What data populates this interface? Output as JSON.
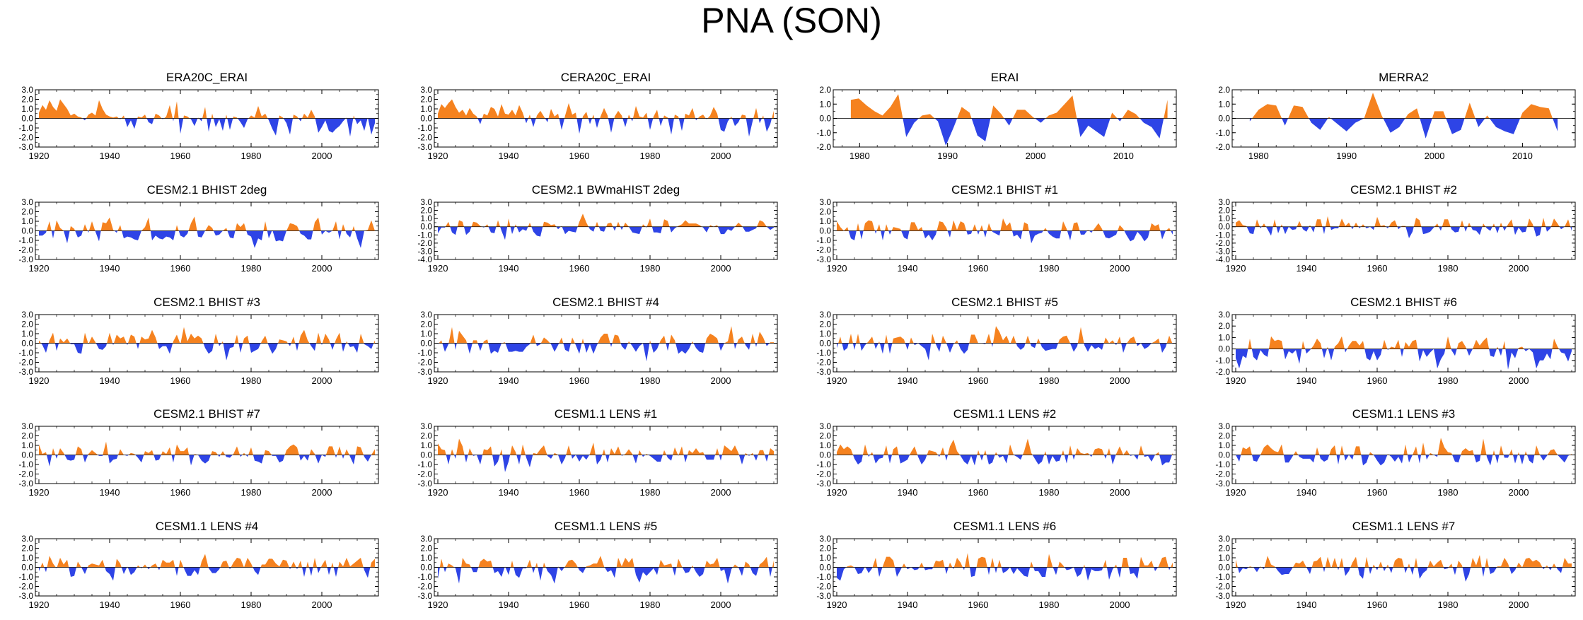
{
  "figure": {
    "title": "PNA (SON)"
  },
  "colors": {
    "positive": "#f5821f",
    "negative": "#2e44e6",
    "axis": "#000000"
  },
  "chart_data": [
    {
      "type": "area",
      "title": "ERA20C_ERAI",
      "x_start": 1920,
      "x_end": 2015,
      "xlim": [
        1919,
        2016
      ],
      "ylim": [
        -3,
        3
      ],
      "yticks": [
        "3.0",
        "2.0",
        "1.0",
        "0.0",
        "-1.0",
        "-2.0",
        "-3.0"
      ],
      "xticks": [
        "1920",
        "1940",
        "1960",
        "1980",
        "2000"
      ],
      "values": [
        0.6,
        1.4,
        0.9,
        1.9,
        1.2,
        0.8,
        2.0,
        1.5,
        1.0,
        0.3,
        0.5,
        0.2,
        0.1,
        -0.2,
        0.4,
        0.6,
        0.3,
        1.9,
        1.0,
        0.4,
        0.2,
        0.1,
        0.2,
        -0.1,
        0.3,
        -0.9,
        -0.2,
        -1.1,
        0.2,
        0.1,
        0.4,
        -0.4,
        -0.6,
        0.5,
        0.3,
        -0.1,
        0.2,
        1.4,
        -0.3,
        1.8,
        -1.6,
        0.3,
        0.2,
        -0.1,
        -0.8,
        0.1,
        -0.3,
        1.2,
        -1.4,
        0.5,
        -0.9,
        -0.1,
        -1.3,
        0.4,
        -1.2,
        0.2,
        0.1,
        -0.4,
        -1.0,
        -0.1,
        0.3,
        0.1,
        1.3,
        0.2,
        0.5,
        -0.2,
        -1.1,
        -1.8,
        0.3,
        0.1,
        -0.5,
        -1.7,
        0.4,
        0.2,
        -0.3,
        0.5,
        0.1,
        0.9,
        0.2,
        -1.5,
        -0.9,
        -0.2,
        -1.3,
        -1.5,
        -1.1,
        -0.8,
        -0.3,
        0.1,
        -1.9,
        0.3,
        -0.6,
        -0.2,
        -1.3,
        0.1,
        -1.7,
        -0.5
      ]
    },
    {
      "type": "area",
      "title": "CERA20C_ERAI",
      "x_start": 1920,
      "x_end": 2015,
      "xlim": [
        1919,
        2016
      ],
      "ylim": [
        -3,
        3
      ],
      "yticks": [
        "3.0",
        "2.0",
        "1.0",
        "0.0",
        "-1.0",
        "-2.0",
        "-3.0"
      ],
      "xticks": [
        "1920",
        "1940",
        "1960",
        "1980",
        "2000"
      ],
      "values": [
        0.5,
        1.5,
        1.1,
        1.6,
        2.0,
        1.2,
        0.6,
        0.9,
        0.3,
        1.1,
        0.5,
        0.2,
        -0.6,
        0.5,
        0.3,
        1.2,
        1.0,
        0.2,
        1.5,
        0.5,
        0.4,
        0.9,
        0.3,
        1.4,
        0.6,
        -0.5,
        0.4,
        -0.9,
        0.3,
        0.8,
        0.2,
        -0.4,
        1.0,
        0.2,
        0.5,
        -1.2,
        0.3,
        1.6,
        0.4,
        0.6,
        -1.6,
        0.2,
        0.7,
        -0.6,
        0.4,
        -1.0,
        0.2,
        1.1,
        0.3,
        -1.5,
        0.2,
        0.8,
        0.3,
        -0.9,
        0.4,
        -0.3,
        1.3,
        0.2,
        0.1,
        0.6,
        -1.2,
        0.2,
        0.9,
        -0.8,
        0.3,
        0.1,
        -1.7,
        0.4,
        0.2,
        -1.3,
        0.5,
        0.3,
        1.1,
        -0.2,
        0.2,
        0.4,
        -0.1,
        0.3,
        1.2,
        0.5,
        -1.2,
        -1.4,
        -0.3,
        0.2,
        -0.8,
        -0.4,
        0.4,
        0.3,
        -1.9,
        -0.3,
        1.1,
        -0.5,
        0.3,
        -1.4,
        -0.6,
        0.8
      ]
    },
    {
      "type": "area",
      "title": "ERAI",
      "x_start": 1979,
      "x_end": 2014,
      "xlim": [
        1977,
        2016
      ],
      "ylim": [
        -2,
        2
      ],
      "yticks": [
        "2.0",
        "1.0",
        "0.0",
        "-1.0",
        "-2.0"
      ],
      "xticks": [
        "1980",
        "1990",
        "2000",
        "2010"
      ],
      "values": [
        1.3,
        1.4,
        0.9,
        0.5,
        0.2,
        0.8,
        1.7,
        -1.3,
        -0.3,
        0.2,
        0.3,
        -0.2,
        -1.9,
        -0.6,
        0.8,
        0.4,
        -1.2,
        -1.6,
        0.9,
        0.3,
        -0.5,
        0.6,
        0.6,
        0.1,
        -0.3,
        0.2,
        0.4,
        1.0,
        1.6,
        -1.3,
        -0.5,
        -0.9,
        -1.3,
        0.4,
        -0.2,
        0.6,
        0.3,
        -0.3,
        -0.6,
        -1.4,
        1.3
      ],
      "x_step": 0.9
    }
  ],
  "panels": [
    {
      "title": "ERA20C_ERAI"
    },
    {
      "title": "CERA20C_ERAI"
    },
    {
      "title": "ERAI"
    },
    {
      "title": "MERRA2"
    },
    {
      "title": "CESM2.1 BHIST 2deg"
    },
    {
      "title": "CESM2.1 BWmaHIST 2deg"
    },
    {
      "title": "CESM2.1 BHIST #1"
    },
    {
      "title": "CESM2.1 BHIST #2"
    },
    {
      "title": "CESM2.1 BHIST #3"
    },
    {
      "title": "CESM2.1 BHIST #4"
    },
    {
      "title": "CESM2.1 BHIST #5"
    },
    {
      "title": "CESM2.1 BHIST #6"
    },
    {
      "title": "CESM2.1 BHIST #7"
    },
    {
      "title": "CESM1.1 LENS #1"
    },
    {
      "title": "CESM1.1 LENS #2"
    },
    {
      "title": "CESM1.1 LENS #3"
    },
    {
      "title": "CESM1.1 LENS #4"
    },
    {
      "title": "CESM1.1 LENS #5"
    },
    {
      "title": "CESM1.1 LENS #6"
    },
    {
      "title": "CESM1.1 LENS #7"
    }
  ],
  "axes": [
    {
      "xlim": [
        1919,
        2016
      ],
      "x_start": 1920,
      "ylim": [
        -3,
        3
      ],
      "yticks": [
        "3.0",
        "2.0",
        "1.0",
        "0.0",
        "-1.0",
        "-2.0",
        "-3.0"
      ],
      "xticks": [
        "1920",
        "1940",
        "1960",
        "1980",
        "2000"
      ],
      "seed": 11
    },
    {
      "xlim": [
        1919,
        2016
      ],
      "x_start": 1920,
      "ylim": [
        -3,
        3
      ],
      "yticks": [
        "3.0",
        "2.0",
        "1.0",
        "0.0",
        "-1.0",
        "-2.0",
        "-3.0"
      ],
      "xticks": [
        "1920",
        "1940",
        "1960",
        "1980",
        "2000"
      ],
      "seed": 12
    },
    {
      "xlim": [
        1977,
        2016
      ],
      "x_start": 1979,
      "ylim": [
        -2,
        2
      ],
      "yticks": [
        "2.0",
        "1.0",
        "0.0",
        "-1.0",
        "-2.0"
      ],
      "xticks": [
        "1980",
        "1990",
        "2000",
        "2010"
      ],
      "seed": 13
    },
    {
      "xlim": [
        1977,
        2016
      ],
      "x_start": 1979,
      "ylim": [
        -2,
        2
      ],
      "yticks": [
        "2.0",
        "1.0",
        "0.0",
        "-1.0",
        "-2.0"
      ],
      "xticks": [
        "1980",
        "1990",
        "2000",
        "2010"
      ],
      "seed": 14
    },
    {
      "xlim": [
        1919,
        2016
      ],
      "x_start": 1920,
      "ylim": [
        -3,
        3
      ],
      "yticks": [
        "3.0",
        "2.0",
        "1.0",
        "0.0",
        "-1.0",
        "-2.0",
        "-3.0"
      ],
      "xticks": [
        "1920",
        "1940",
        "1960",
        "1980",
        "2000"
      ],
      "seed": 21
    },
    {
      "xlim": [
        1919,
        2016
      ],
      "x_start": 1920,
      "ylim": [
        -4,
        3
      ],
      "yticks": [
        "3.0",
        "2.0",
        "1.0",
        "0.0",
        "-1.0",
        "-2.0",
        "-3.0",
        "-4.0"
      ],
      "xticks": [
        "1920",
        "1940",
        "1960",
        "1980",
        "2000"
      ],
      "seed": 22
    },
    {
      "xlim": [
        1919,
        2016
      ],
      "x_start": 1920,
      "ylim": [
        -3,
        3
      ],
      "yticks": [
        "3.0",
        "2.0",
        "1.0",
        "0.0",
        "-1.0",
        "-2.0",
        "-3.0"
      ],
      "xticks": [
        "1920",
        "1940",
        "1960",
        "1980",
        "2000"
      ],
      "seed": 23
    },
    {
      "xlim": [
        1919,
        2016
      ],
      "x_start": 1920,
      "ylim": [
        -4,
        3
      ],
      "yticks": [
        "3.0",
        "2.0",
        "1.0",
        "0.0",
        "-1.0",
        "-2.0",
        "-3.0",
        "-4.0"
      ],
      "xticks": [
        "1920",
        "1940",
        "1960",
        "1980",
        "2000"
      ],
      "seed": 24
    },
    {
      "xlim": [
        1919,
        2016
      ],
      "x_start": 1920,
      "ylim": [
        -3,
        3
      ],
      "yticks": [
        "3.0",
        "2.0",
        "1.0",
        "0.0",
        "-1.0",
        "-2.0",
        "-3.0"
      ],
      "xticks": [
        "1920",
        "1940",
        "1960",
        "1980",
        "2000"
      ],
      "seed": 31
    },
    {
      "xlim": [
        1919,
        2016
      ],
      "x_start": 1920,
      "ylim": [
        -3,
        3
      ],
      "yticks": [
        "3.0",
        "2.0",
        "1.0",
        "0.0",
        "-1.0",
        "-2.0",
        "-3.0"
      ],
      "xticks": [
        "1920",
        "1940",
        "1960",
        "1980",
        "2000"
      ],
      "seed": 32
    },
    {
      "xlim": [
        1919,
        2016
      ],
      "x_start": 1920,
      "ylim": [
        -3,
        3
      ],
      "yticks": [
        "3.0",
        "2.0",
        "1.0",
        "0.0",
        "-1.0",
        "-2.0",
        "-3.0"
      ],
      "xticks": [
        "1920",
        "1940",
        "1960",
        "1980",
        "2000"
      ],
      "seed": 33
    },
    {
      "xlim": [
        1919,
        2016
      ],
      "x_start": 1920,
      "ylim": [
        -2,
        3
      ],
      "yticks": [
        "3.0",
        "2.0",
        "1.0",
        "0.0",
        "-1.0",
        "-2.0"
      ],
      "xticks": [
        "1920",
        "1940",
        "1960",
        "1980",
        "2000"
      ],
      "seed": 34
    },
    {
      "xlim": [
        1919,
        2016
      ],
      "x_start": 1920,
      "ylim": [
        -3,
        3
      ],
      "yticks": [
        "3.0",
        "2.0",
        "1.0",
        "0.0",
        "-1.0",
        "-2.0",
        "-3.0"
      ],
      "xticks": [
        "1920",
        "1940",
        "1960",
        "1980",
        "2000"
      ],
      "seed": 41
    },
    {
      "xlim": [
        1919,
        2016
      ],
      "x_start": 1920,
      "ylim": [
        -3,
        3
      ],
      "yticks": [
        "3.0",
        "2.0",
        "1.0",
        "0.0",
        "-1.0",
        "-2.0",
        "-3.0"
      ],
      "xticks": [
        "1920",
        "1940",
        "1960",
        "1980",
        "2000"
      ],
      "seed": 42
    },
    {
      "xlim": [
        1919,
        2016
      ],
      "x_start": 1920,
      "ylim": [
        -3,
        3
      ],
      "yticks": [
        "3.0",
        "2.0",
        "1.0",
        "0.0",
        "-1.0",
        "-2.0",
        "-3.0"
      ],
      "xticks": [
        "1920",
        "1940",
        "1960",
        "1980",
        "2000"
      ],
      "seed": 43
    },
    {
      "xlim": [
        1919,
        2016
      ],
      "x_start": 1920,
      "ylim": [
        -3,
        3
      ],
      "yticks": [
        "3.0",
        "2.0",
        "1.0",
        "0.0",
        "-1.0",
        "-2.0",
        "-3.0"
      ],
      "xticks": [
        "1920",
        "1940",
        "1960",
        "1980",
        "2000"
      ],
      "seed": 44
    },
    {
      "xlim": [
        1919,
        2016
      ],
      "x_start": 1920,
      "ylim": [
        -3,
        3
      ],
      "yticks": [
        "3.0",
        "2.0",
        "1.0",
        "0.0",
        "-1.0",
        "-2.0",
        "-3.0"
      ],
      "xticks": [
        "1920",
        "1940",
        "1960",
        "1980",
        "2000"
      ],
      "seed": 51
    },
    {
      "xlim": [
        1919,
        2016
      ],
      "x_start": 1920,
      "ylim": [
        -3,
        3
      ],
      "yticks": [
        "3.0",
        "2.0",
        "1.0",
        "0.0",
        "-1.0",
        "-2.0",
        "-3.0"
      ],
      "xticks": [
        "1920",
        "1940",
        "1960",
        "1980",
        "2000"
      ],
      "seed": 52
    },
    {
      "xlim": [
        1919,
        2016
      ],
      "x_start": 1920,
      "ylim": [
        -3,
        3
      ],
      "yticks": [
        "3.0",
        "2.0",
        "1.0",
        "0.0",
        "-1.0",
        "-2.0",
        "-3.0"
      ],
      "xticks": [
        "1920",
        "1940",
        "1960",
        "1980",
        "2000"
      ],
      "seed": 53
    },
    {
      "xlim": [
        1919,
        2016
      ],
      "x_start": 1920,
      "ylim": [
        -3,
        3
      ],
      "yticks": [
        "3.0",
        "2.0",
        "1.0",
        "0.0",
        "-1.0",
        "-2.0",
        "-3.0"
      ],
      "xticks": [
        "1920",
        "1940",
        "1960",
        "1980",
        "2000"
      ],
      "seed": 54
    }
  ]
}
